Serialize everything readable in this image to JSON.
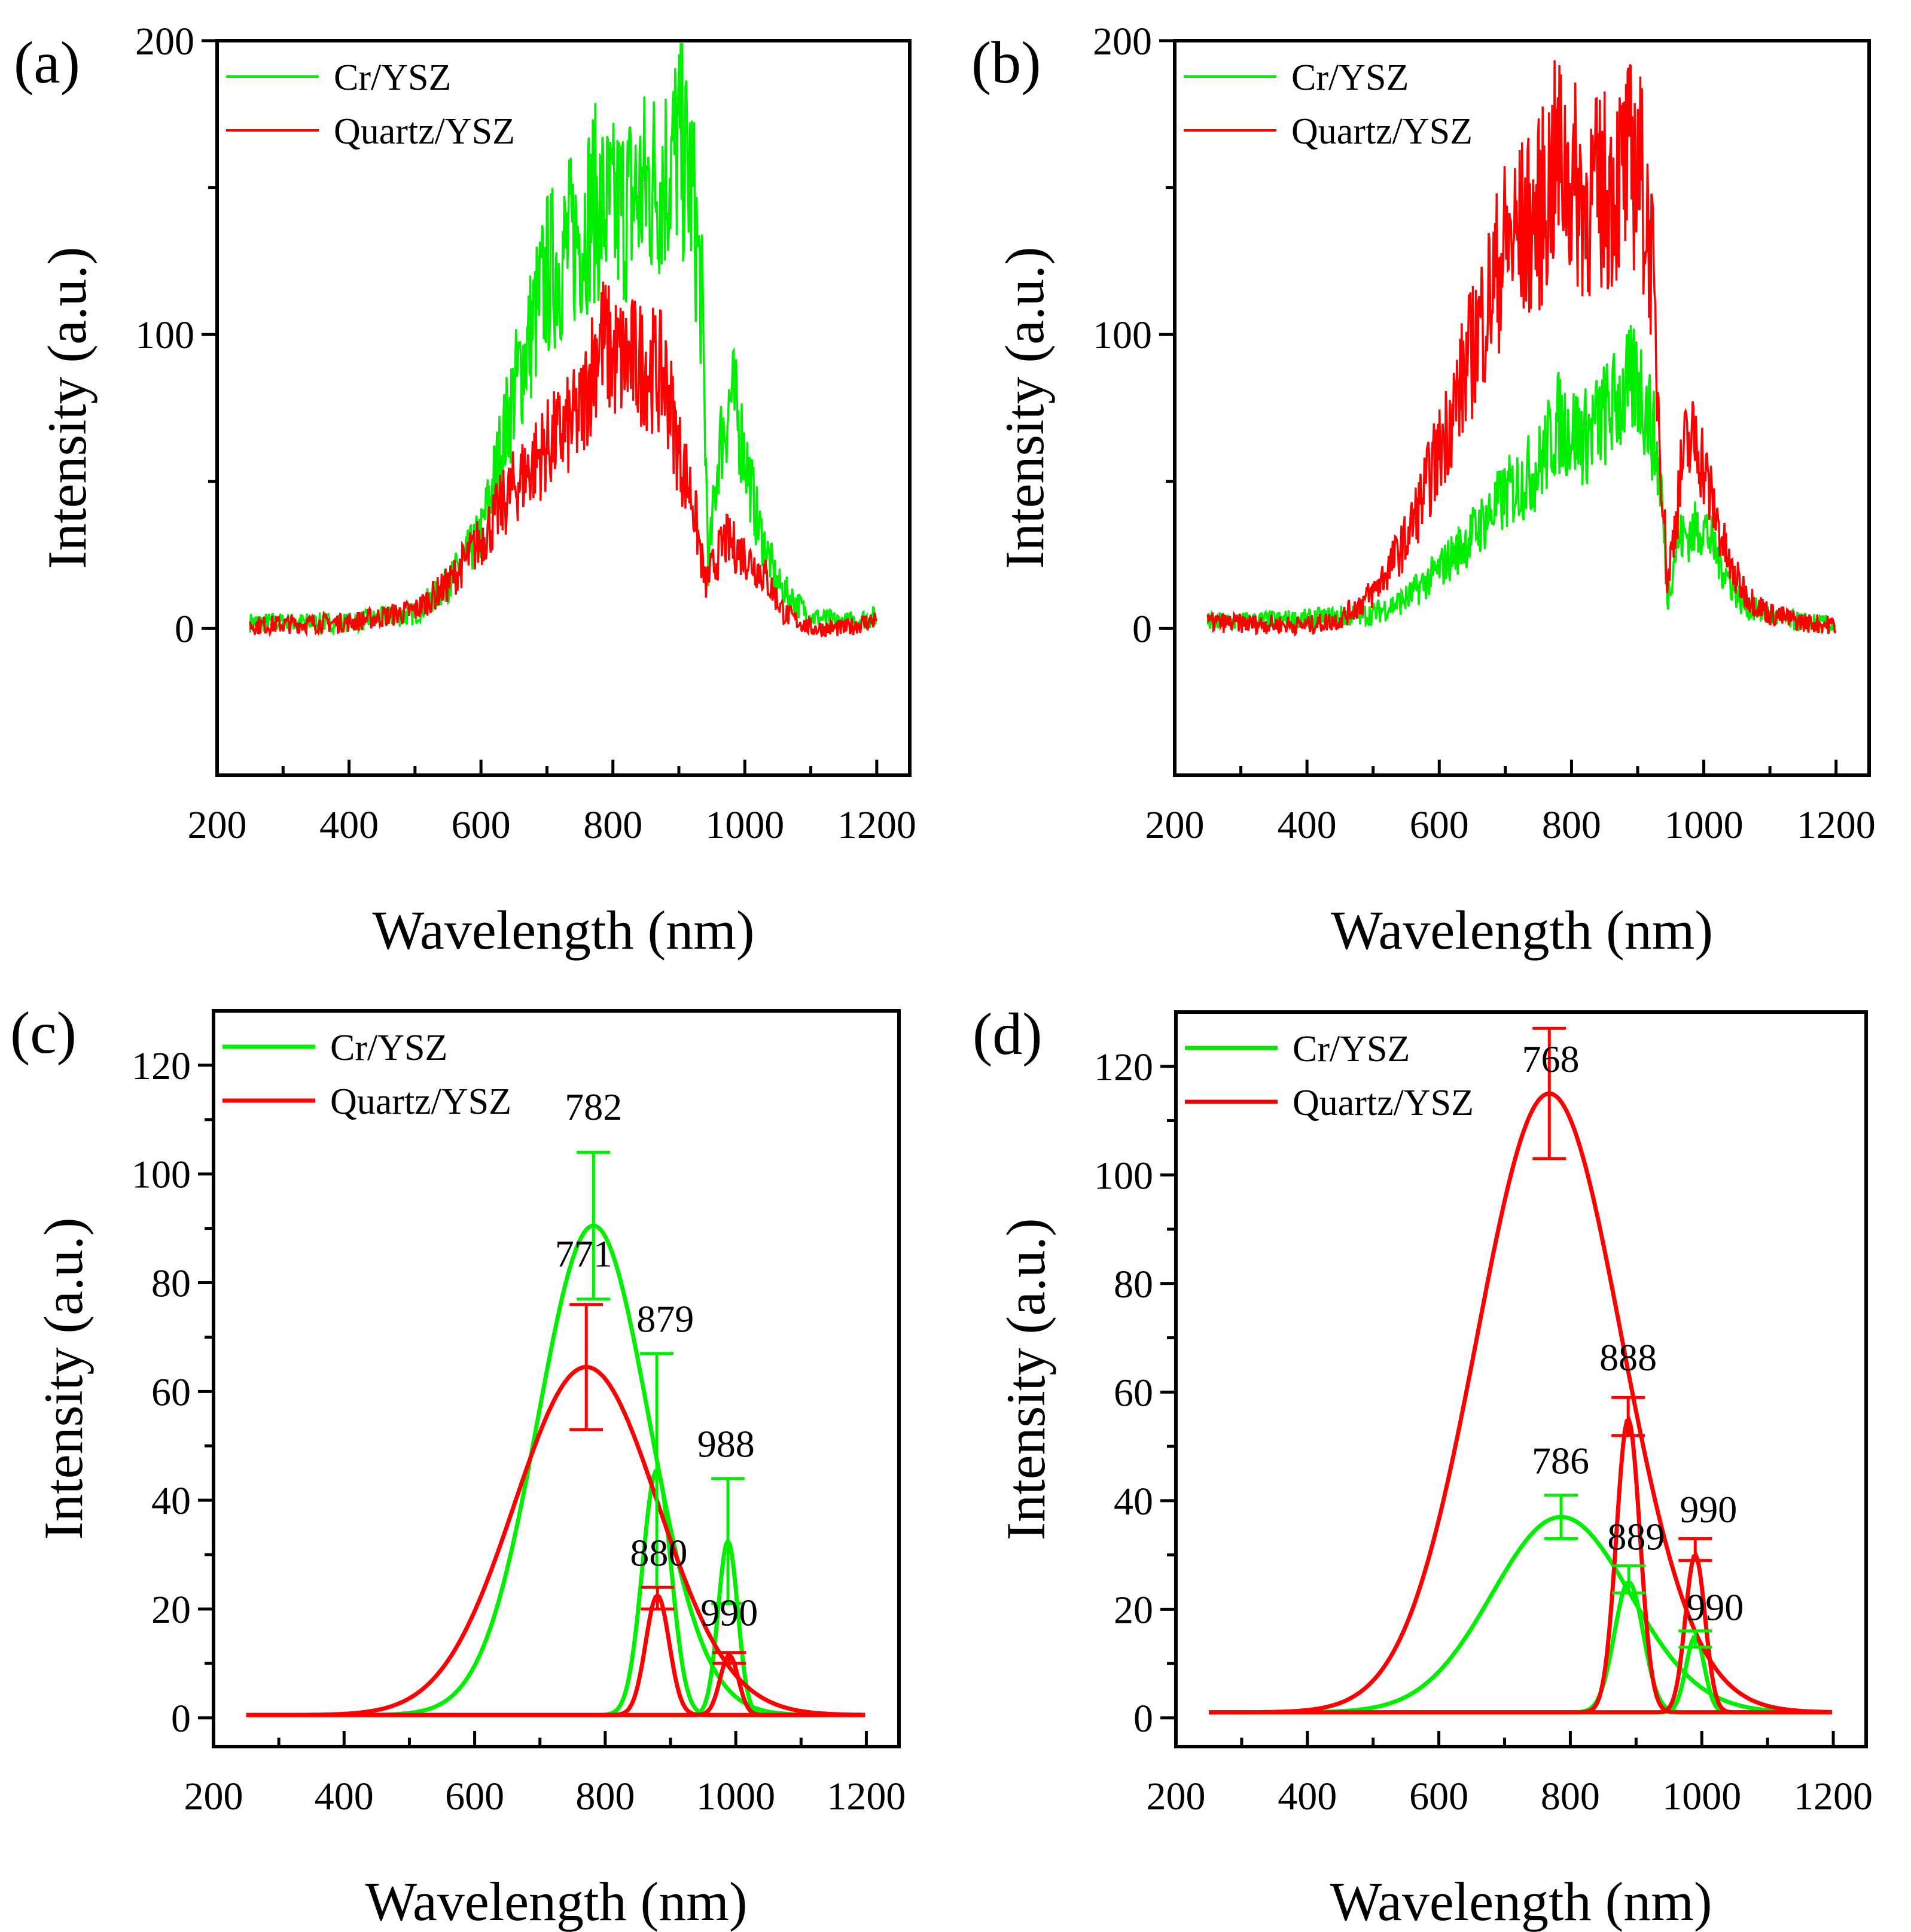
{
  "colors": {
    "cr": "#00ee00",
    "quartz": "#ff0000",
    "axis": "#000000"
  },
  "chart_data": [
    {
      "type": "line",
      "panel_label": "(a)",
      "xlabel": "Wavelength (nm)",
      "ylabel": "Intensity (a.u.)",
      "xlim": [
        200,
        1250
      ],
      "ylim": [
        -50,
        200
      ],
      "xticks": [
        200,
        400,
        600,
        800,
        1000,
        1200
      ],
      "yticks": [
        0,
        100,
        200
      ],
      "legend": [
        "Cr/YSZ",
        "Quartz/YSZ"
      ],
      "legend_position": "top-left",
      "noisy": true,
      "series": [
        {
          "name": "Cr/YSZ",
          "color": "cr",
          "x": [
            250,
            400,
            500,
            550,
            600,
            650,
            700,
            750,
            770,
            800,
            850,
            880,
            900,
            920,
            935,
            945,
            960,
            980,
            1000,
            1020,
            1050,
            1100,
            1150,
            1200
          ],
          "y": [
            2,
            2,
            5,
            15,
            32,
            80,
            120,
            135,
            145,
            140,
            150,
            155,
            165,
            150,
            110,
            20,
            60,
            80,
            60,
            35,
            15,
            4,
            2,
            4
          ]
        },
        {
          "name": "Quartz/YSZ",
          "color": "quartz",
          "x": [
            250,
            400,
            500,
            550,
            600,
            650,
            700,
            750,
            780,
            800,
            850,
            880,
            900,
            920,
            940,
            950,
            970,
            1000,
            1030,
            1060,
            1100,
            1150,
            1200
          ],
          "y": [
            1,
            2,
            6,
            15,
            30,
            48,
            62,
            72,
            100,
            92,
            90,
            85,
            60,
            45,
            15,
            20,
            30,
            25,
            18,
            5,
            0,
            0,
            3
          ]
        }
      ]
    },
    {
      "type": "line",
      "panel_label": "(b)",
      "xlabel": "Wavelength (nm)",
      "ylabel": "Intensity (a.u.)",
      "xlim": [
        200,
        1250
      ],
      "ylim": [
        -50,
        200
      ],
      "xticks": [
        200,
        400,
        600,
        800,
        1000,
        1200
      ],
      "yticks": [
        0,
        100,
        200
      ],
      "legend": [
        "Cr/YSZ",
        "Quartz/YSZ"
      ],
      "legend_position": "top-left",
      "noisy": true,
      "series": [
        {
          "name": "Cr/YSZ",
          "color": "cr",
          "x": [
            250,
            400,
            500,
            550,
            600,
            650,
            700,
            750,
            780,
            820,
            860,
            900,
            920,
            935,
            945,
            960,
            1000,
            1030,
            1060,
            1100,
            1150,
            1200
          ],
          "y": [
            2,
            3,
            5,
            10,
            20,
            32,
            45,
            55,
            70,
            65,
            75,
            85,
            70,
            50,
            10,
            30,
            35,
            20,
            8,
            4,
            2,
            1
          ]
        },
        {
          "name": "Quartz/YSZ",
          "color": "quartz",
          "x": [
            250,
            400,
            450,
            500,
            550,
            600,
            650,
            700,
            750,
            780,
            820,
            860,
            900,
            920,
            935,
            945,
            970,
            990,
            1010,
            1040,
            1070,
            1100,
            1150,
            1200
          ],
          "y": [
            2,
            1,
            3,
            12,
            30,
            60,
            95,
            130,
            140,
            160,
            145,
            150,
            160,
            130,
            60,
            15,
            60,
            65,
            45,
            20,
            10,
            5,
            2,
            1
          ]
        }
      ]
    },
    {
      "type": "line",
      "panel_label": "(c)",
      "xlabel": "Wavelength (nm)",
      "ylabel": "Intensity (a.u.)",
      "xlim": [
        200,
        1250
      ],
      "ylim": [
        -5.3,
        130
      ],
      "xticks": [
        200,
        400,
        600,
        800,
        1000,
        1200
      ],
      "yticks": [
        0,
        20,
        40,
        60,
        80,
        100,
        120
      ],
      "legend": [
        "Cr/YSZ",
        "Quartz/YSZ"
      ],
      "legend_position": "top-left",
      "baseline": 0.5,
      "peaks": [
        {
          "series": "Cr/YSZ",
          "color": "cr",
          "center": 782,
          "amplitude": 90,
          "sigma": 85,
          "err": [
            77,
            104
          ],
          "label": "782",
          "label_at": [
            782,
            110
          ]
        },
        {
          "series": "Cr/YSZ",
          "color": "cr",
          "center": 879,
          "amplitude": 45,
          "sigma": 22,
          "err": [
            24,
            67
          ],
          "label": "879",
          "label_at": [
            892,
            71
          ]
        },
        {
          "series": "Cr/YSZ",
          "color": "cr",
          "center": 988,
          "amplitude": 32,
          "sigma": 15,
          "err": [
            21,
            44
          ],
          "label": "988",
          "label_at": [
            985,
            48
          ]
        },
        {
          "series": "Quartz/YSZ",
          "color": "quartz",
          "center": 771,
          "amplitude": 64,
          "sigma": 110,
          "err": [
            53,
            76
          ],
          "label": "771",
          "label_at": [
            767,
            83
          ]
        },
        {
          "series": "Quartz/YSZ",
          "color": "quartz",
          "center": 880,
          "amplitude": 22,
          "sigma": 18,
          "err": [
            20,
            24
          ],
          "label": "880",
          "label_at": [
            882,
            28
          ]
        },
        {
          "series": "Quartz/YSZ",
          "color": "quartz",
          "center": 990,
          "amplitude": 11,
          "sigma": 14,
          "err": [
            10,
            12
          ],
          "label": "990",
          "label_at": [
            990,
            17
          ]
        }
      ]
    },
    {
      "type": "line",
      "panel_label": "(d)",
      "xlabel": "Wavelength (nm)",
      "ylabel": "Intensity (a.u.)",
      "xlim": [
        200,
        1250
      ],
      "ylim": [
        -5.3,
        130
      ],
      "xticks": [
        200,
        400,
        600,
        800,
        1000,
        1200
      ],
      "yticks": [
        0,
        20,
        40,
        60,
        80,
        100,
        120
      ],
      "legend": [
        "Cr/YSZ",
        "Quartz/YSZ"
      ],
      "legend_position": "top-left",
      "baseline": 1,
      "peaks": [
        {
          "series": "Cr/YSZ",
          "color": "cr",
          "center": 786,
          "amplitude": 36,
          "sigma": 105,
          "err": [
            33,
            41
          ],
          "label": "786",
          "label_at": [
            785,
            45
          ]
        },
        {
          "series": "Cr/YSZ",
          "color": "cr",
          "center": 889,
          "amplitude": 24,
          "sigma": 22,
          "err": [
            23,
            28
          ],
          "label": "889",
          "label_at": [
            900,
            31
          ]
        },
        {
          "series": "Cr/YSZ",
          "color": "cr",
          "center": 990,
          "amplitude": 14,
          "sigma": 14,
          "err": [
            13,
            16
          ],
          "label": "990",
          "label_at": [
            1020,
            18
          ]
        },
        {
          "series": "Quartz/YSZ",
          "color": "quartz",
          "center": 768,
          "amplitude": 114,
          "sigma": 110,
          "err": [
            103,
            127
          ],
          "label": "768",
          "label_at": [
            770,
            119
          ]
        },
        {
          "series": "Quartz/YSZ",
          "color": "quartz",
          "center": 888,
          "amplitude": 54,
          "sigma": 18,
          "err": [
            52,
            59
          ],
          "label": "888",
          "label_at": [
            888,
            64
          ]
        },
        {
          "series": "Quartz/YSZ",
          "color": "quartz",
          "center": 990,
          "amplitude": 29,
          "sigma": 15,
          "err": [
            29,
            33
          ],
          "label": "990",
          "label_at": [
            1010,
            36
          ]
        }
      ]
    }
  ]
}
